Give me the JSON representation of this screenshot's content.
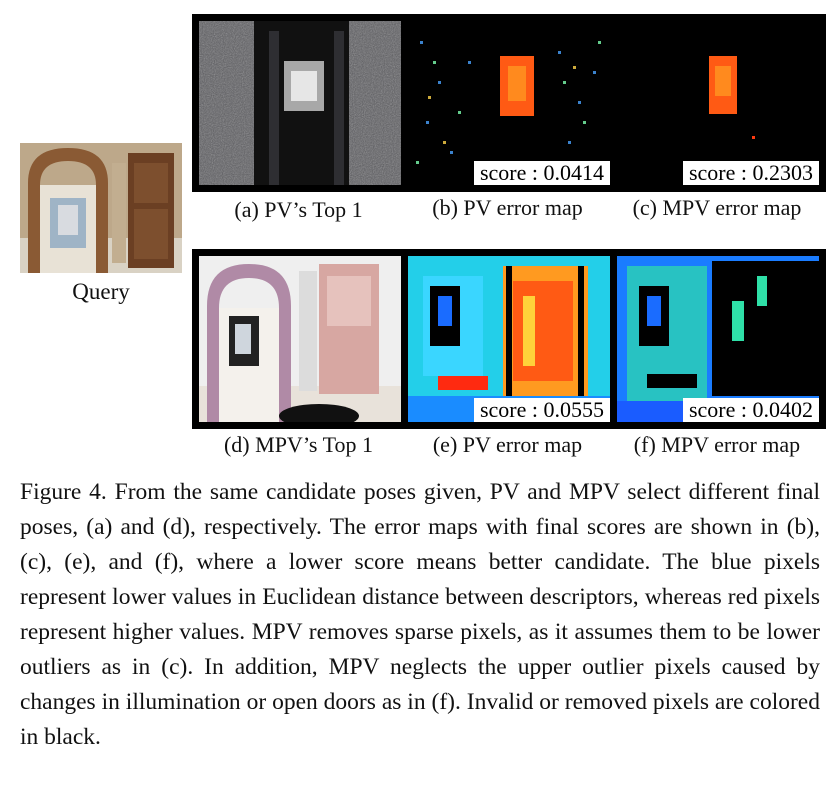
{
  "query": {
    "label": "Query"
  },
  "top_row": {
    "panels": [
      {
        "label": "(a) PV’s Top 1"
      },
      {
        "label": "(b) PV error map",
        "score": "score : 0.0414"
      },
      {
        "label": "(c) MPV error map",
        "score": "score : 0.2303"
      }
    ]
  },
  "bottom_row": {
    "panels": [
      {
        "label": "(d) MPV’s Top 1"
      },
      {
        "label": "(e) PV error map",
        "score": "score : 0.0555"
      },
      {
        "label": "(f) MPV error map",
        "score": "score : 0.0402"
      }
    ]
  },
  "caption": "Figure 4. From the same candidate poses given, PV and MPV select different final poses, (a) and (d), respectively. The error maps with final scores are shown in (b), (c), (e), and (f), where a lower score means better candidate. The blue pixels represent lower values in Euclidean distance between descriptors, whereas red pixels represent higher values. MPV removes sparse pixels, as it assumes them to be lower outliers as in (c).  In addition, MPV neglects the upper outlier pixels caused by changes in illumination or open doors as in (f). Invalid or removed pixels are colored in black.",
  "colors": {
    "low_value": "#1a6cff",
    "high_value": "#ff3a10",
    "invalid": "#000000"
  }
}
